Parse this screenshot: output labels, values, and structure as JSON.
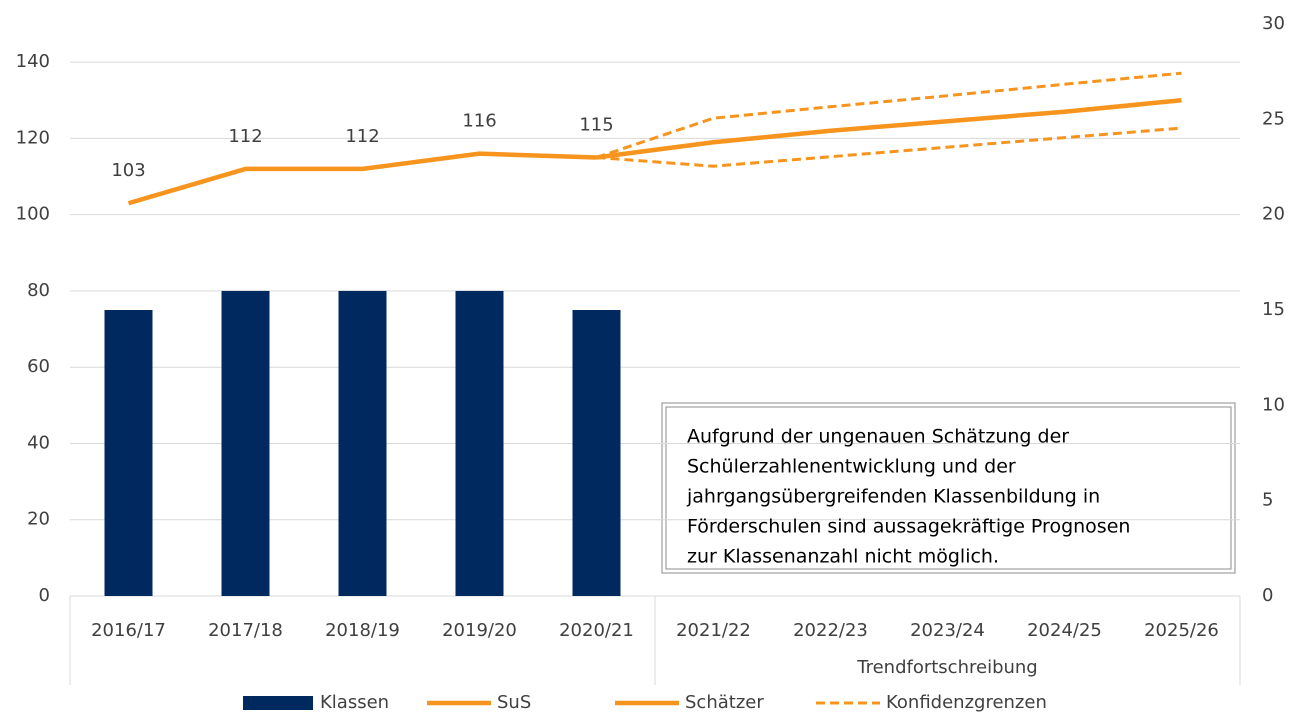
{
  "chart_data": {
    "type": "combo",
    "categories": [
      "2016/17",
      "2017/18",
      "2018/19",
      "2019/20",
      "2020/21",
      "2021/22",
      "2022/23",
      "2023/24",
      "2024/25",
      "2025/26"
    ],
    "category_groups": [
      {
        "label": "Trendfortschreibung",
        "start": 5,
        "end": 9
      }
    ],
    "ylim": [
      0,
      150
    ],
    "yticks": [
      0,
      20,
      40,
      60,
      80,
      100,
      120,
      140
    ],
    "y2lim": [
      0,
      30
    ],
    "y2ticks": [
      0,
      5,
      10,
      15,
      20,
      25,
      30
    ],
    "grid": true,
    "legend": "bottom",
    "series": [
      {
        "name": "Klassen",
        "type": "bar",
        "axis": "y2",
        "color": "#002960",
        "values": [
          15,
          16,
          16,
          16,
          15,
          null,
          null,
          null,
          null,
          null
        ]
      },
      {
        "name": "SuS",
        "type": "line",
        "color": "#f7941d",
        "line_style": "solid",
        "data_labels": true,
        "values": [
          103,
          112,
          112,
          116,
          115,
          null,
          null,
          null,
          null,
          null
        ]
      },
      {
        "name": "Schätzer",
        "type": "line",
        "color": "#f7941d",
        "line_style": "solid",
        "values": [
          null,
          null,
          null,
          null,
          115,
          119,
          122,
          124.5,
          127,
          130
        ]
      },
      {
        "name": "Konfidenzgrenzen",
        "type": "line",
        "color": "#f7941d",
        "line_style": "dashed",
        "values": [
          null,
          null,
          null,
          null,
          115,
          125.3,
          128.3,
          131.2,
          134.2,
          137.1
        ]
      },
      {
        "type": "line",
        "color": "#f7941d",
        "line_style": "dashed",
        "values": [
          null,
          null,
          null,
          null,
          115,
          112.7,
          115.2,
          117.7,
          120.2,
          122.7
        ]
      }
    ],
    "annotation": [
      "Aufgrund der ungenauen Schätzung der",
      "Schülerzahlenentwicklung und der",
      "jahrgangsübergreifenden Klassenbildung in",
      "Förderschulen sind aussagekräftige Prognosen",
      "zur Klassenanzahl nicht möglich."
    ]
  }
}
